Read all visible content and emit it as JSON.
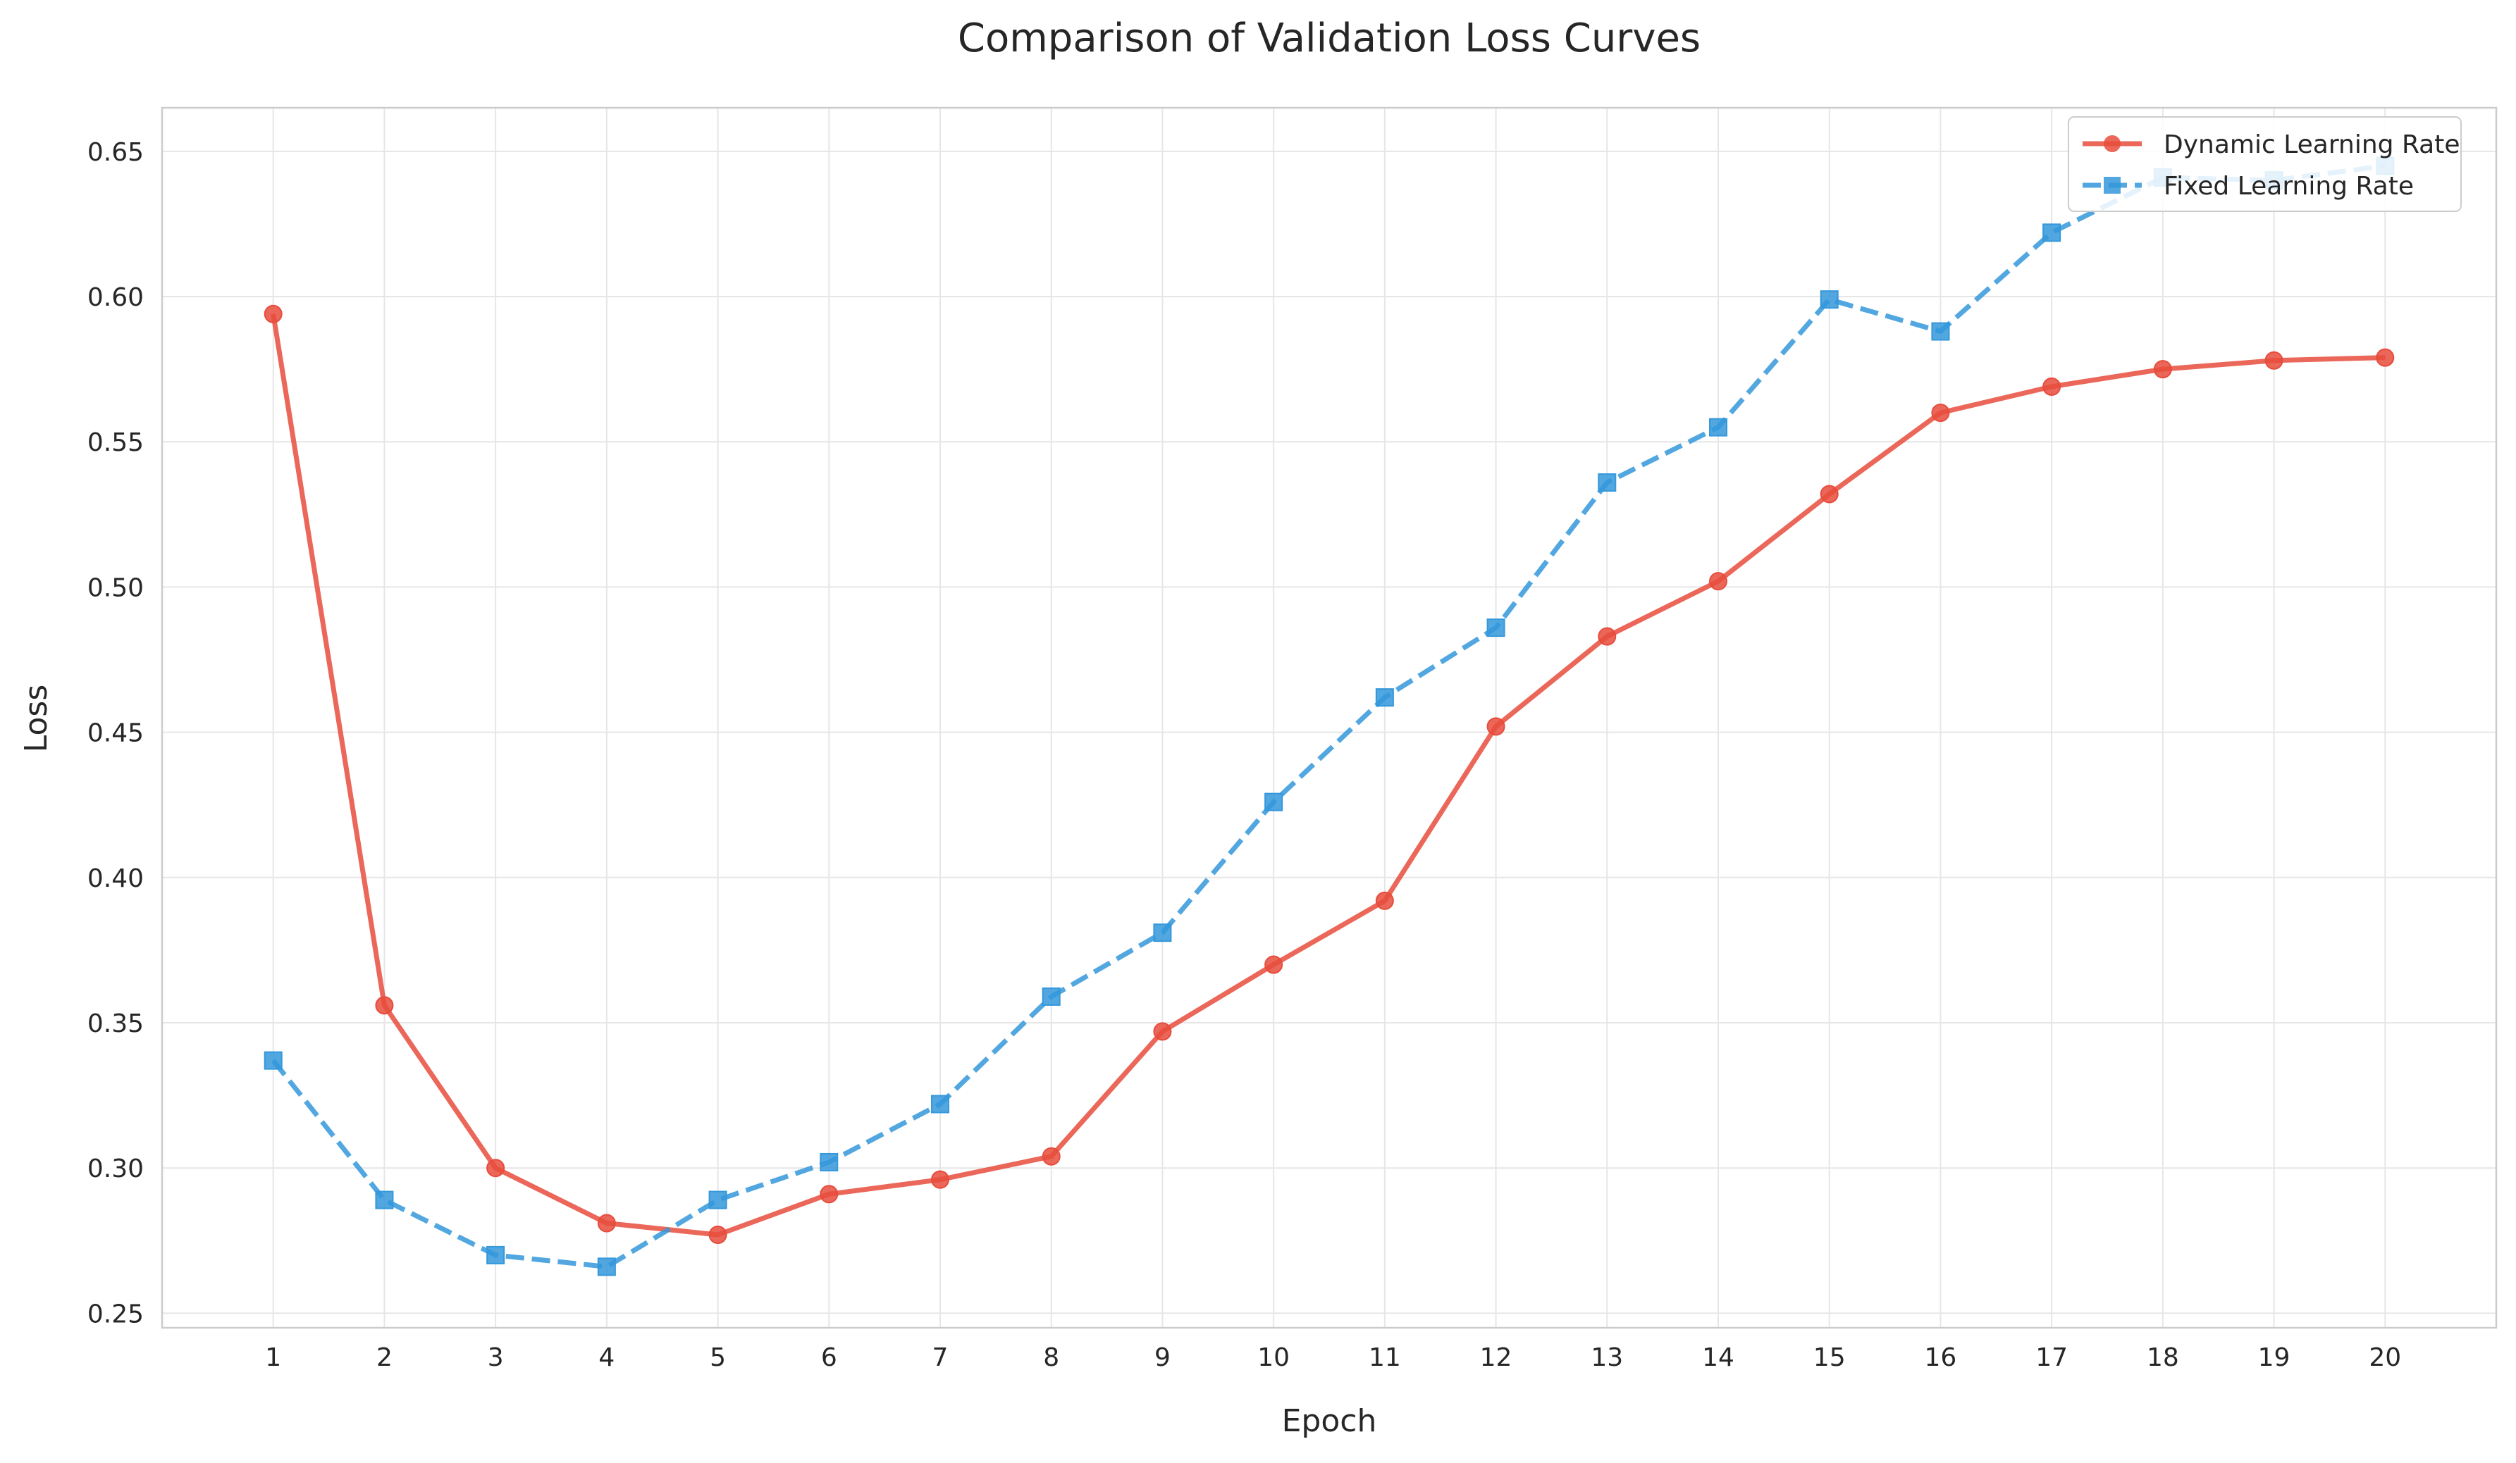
{
  "chart_data": {
    "type": "line",
    "title": "Comparison of Validation Loss Curves",
    "xlabel": "Epoch",
    "ylabel": "Loss",
    "x": [
      1,
      2,
      3,
      4,
      5,
      6,
      7,
      8,
      9,
      10,
      11,
      12,
      13,
      14,
      15,
      16,
      17,
      18,
      19,
      20
    ],
    "xlim": [
      0,
      21
    ],
    "ylim": [
      0.245,
      0.665
    ],
    "yticks": [
      "0.25",
      "0.30",
      "0.35",
      "0.40",
      "0.45",
      "0.50",
      "0.55",
      "0.60",
      "0.65"
    ],
    "grid": true,
    "legend_position": "top-right",
    "series": [
      {
        "name": "Dynamic Learning Rate",
        "color": "#e74c3c",
        "marker": "circle",
        "line_style": "solid",
        "values": [
          0.594,
          0.356,
          0.3,
          0.281,
          0.277,
          0.291,
          0.296,
          0.304,
          0.347,
          0.37,
          0.392,
          0.452,
          0.483,
          0.502,
          0.532,
          0.56,
          0.569,
          0.575,
          0.578,
          0.579
        ]
      },
      {
        "name": "Fixed Learning Rate",
        "color": "#3498db",
        "marker": "square",
        "line_style": "dashed",
        "values": [
          0.337,
          0.289,
          0.27,
          0.266,
          0.289,
          0.302,
          0.322,
          0.359,
          0.381,
          0.426,
          0.462,
          0.486,
          0.536,
          0.555,
          0.599,
          0.588,
          0.622,
          0.641,
          0.64,
          0.645
        ]
      }
    ]
  }
}
